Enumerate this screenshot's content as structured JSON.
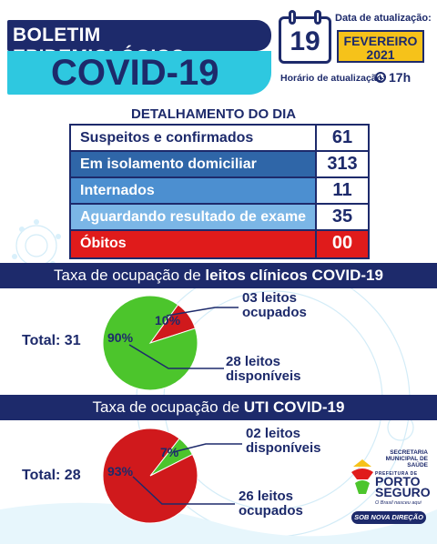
{
  "header": {
    "title": "BOLETIM EPIDEMIOLÓGICO",
    "subtitle": "COVID-19",
    "date_label": "Data de atualização:",
    "day": "19",
    "month": "FEVEREIRO",
    "year": "2021",
    "time_label": "Horário de atualização:",
    "time": "17h"
  },
  "details": {
    "title": "DETALHAMENTO DO DIA",
    "rows": [
      {
        "label": "Suspeitos e confirmados",
        "value": "61"
      },
      {
        "label": "Em isolamento domiciliar",
        "value": "313"
      },
      {
        "label": "Internados",
        "value": "11"
      },
      {
        "label": "Aguardando resultado de exame",
        "value": "35"
      },
      {
        "label": "Óbitos",
        "value": "00"
      }
    ]
  },
  "clinical": {
    "title_prefix": "Taxa de ocupação de ",
    "title_bold": "leitos clínicos COVID-19",
    "total": "Total: 31",
    "occupied_label": "03 leitos ocupados",
    "available_label": "28 leitos disponíveis",
    "colors": {
      "occupied": "#d0191c",
      "available": "#4cc52c"
    }
  },
  "uti": {
    "title_prefix": "Taxa de ocupação de ",
    "title_bold": "UTI COVID-19",
    "total": "Total: 28",
    "available_label": "02 leitos disponíveis",
    "occupied_label": "26 leitos ocupados",
    "colors": {
      "occupied": "#d0191c",
      "available": "#4cc52c"
    }
  },
  "chart_data": [
    {
      "type": "pie",
      "categories": [
        "ocupados",
        "disponíveis"
      ],
      "values": [
        10,
        90
      ],
      "labels": [
        "10%",
        "90%"
      ]
    },
    {
      "type": "pie",
      "categories": [
        "disponíveis",
        "ocupados"
      ],
      "values": [
        7,
        93
      ],
      "labels": [
        "7%",
        "93%"
      ]
    }
  ],
  "logo": {
    "secretaria": "SECRETARIA MUNICIPAL DE SAÚDE",
    "prefeitura": "PREFEITURA DE",
    "city1": "PORTO",
    "city2": "SEGURO",
    "tagline": "O Brasil nasceu aqui",
    "slogan": "SOB NOVA DIREÇÃO"
  },
  "theme": {
    "navy": "#1d2a6b",
    "cyan": "#2ec8e0",
    "yellow": "#f6c21a",
    "red": "#e01b1b"
  }
}
